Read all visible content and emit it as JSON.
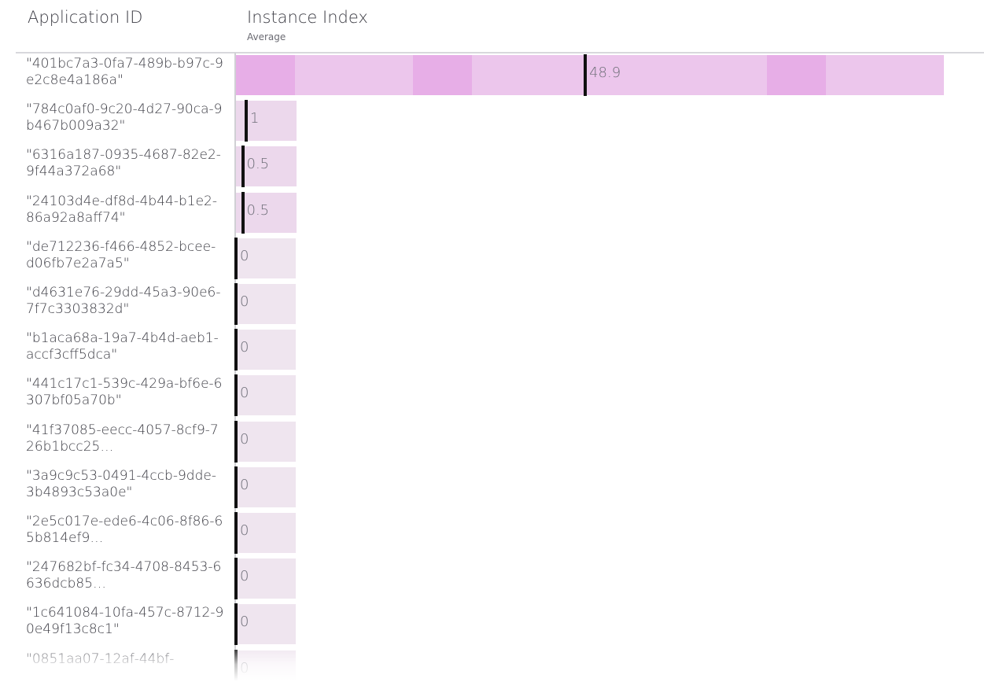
{
  "header": {
    "col1": "Application ID",
    "col2": "Instance Index",
    "col2_sub": "Average"
  },
  "colors": {
    "bar_track": "#efe5ef",
    "bar_fill_light": "#ecc6ec",
    "bar_fill_dark": "#e7aee7",
    "marker": "#111111"
  },
  "chart_data": {
    "type": "bar",
    "orientation": "horizontal",
    "xlabel": "Instance Index",
    "xlabel_sub": "Average",
    "ylabel": "Application ID",
    "xlim": [
      0,
      50
    ],
    "categories": [
      "\"401bc7a3-0fa7-489b-b97c-9e2c8e4a186a\"",
      "\"784c0af0-9c20-4d27-90ca-9b467b009a32\"",
      "\"6316a187-0935-4687-82e2-9f44a372a68\"",
      "\"24103d4e-df8d-4b44-b1e2-86a92a8aff74\"",
      "\"de712236-f466-4852-bcee-d06fb7e2a7a5\"",
      "\"d4631e76-29dd-45a3-90e6-7f7c3303832d\"",
      "\"b1aca68a-19a7-4b4d-aeb1-accf3cff5dca\"",
      "\"441c17c1-539c-429a-bf6e-6307bf05a70b\"",
      "\"41f37085-eecc-4057-8cf9-726b1bcc25…",
      "\"3a9c9c53-0491-4ccb-9dde-3b4893c53a0e\"",
      "\"2e5c017e-ede6-4c06-8f86-65b814ef9…",
      "\"247682bf-fc34-4708-8453-6636dcb85…",
      "\"1c641084-10fa-457c-8712-90e49f13c8c1\"",
      "\"0851aa07-12af-44bf-"
    ],
    "values": [
      48.9,
      1,
      0.5,
      0.5,
      0,
      0,
      0,
      0,
      0,
      0,
      0,
      0,
      0,
      0
    ],
    "value_labels": [
      "48.9",
      "1",
      "0.5",
      "0.5",
      "0",
      "0",
      "0",
      "0",
      "0",
      "0",
      "0",
      "0",
      "0",
      "0"
    ],
    "bar_extent": [
      99,
      1,
      1,
      1,
      1,
      1,
      1,
      1,
      1,
      1,
      1,
      1,
      1,
      1
    ],
    "grid": false,
    "legend": "none"
  }
}
